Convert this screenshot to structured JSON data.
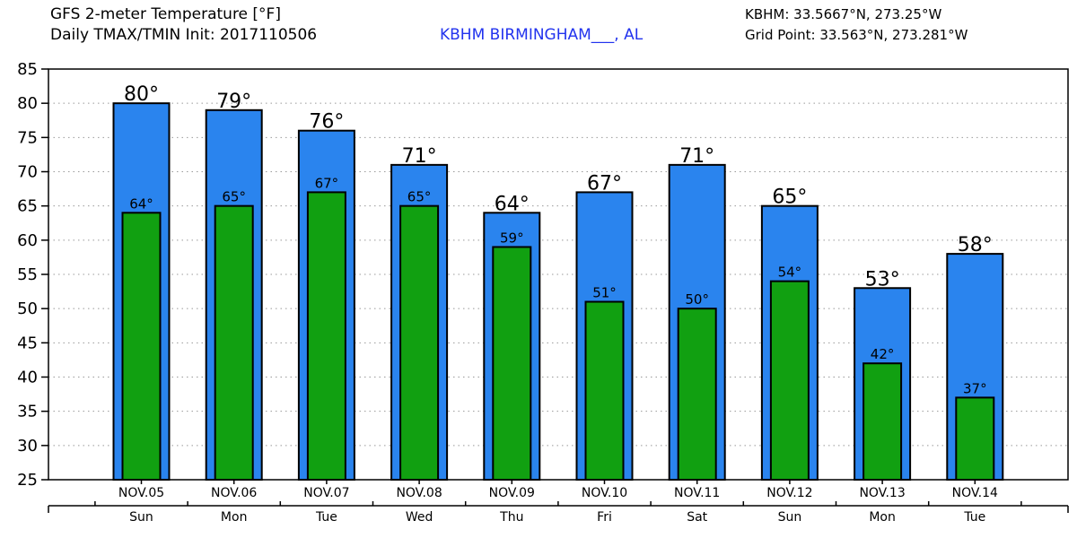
{
  "header": {
    "title_line1": "GFS 2-meter Temperature [°F]",
    "title_line2": "Daily TMAX/TMIN Init: 2017110506",
    "station": "KBHM BIRMINGHAM___, AL",
    "station_coords": "KBHM: 33.5667°N, 273.25°W",
    "grid_point": "Grid Point: 33.563°N, 273.281°W"
  },
  "colors": {
    "tmax": "#2a84ee",
    "tmin": "#11a011",
    "grid": "#999999",
    "station_text": "#2233ee"
  },
  "chart_data": {
    "type": "bar",
    "title": "GFS 2-meter Temperature [°F]",
    "ylabel": "",
    "xlabel": "",
    "ylim": [
      25,
      85
    ],
    "yticks": [
      25,
      30,
      35,
      40,
      45,
      50,
      55,
      60,
      65,
      70,
      75,
      80,
      85
    ],
    "categories": [
      "NOV.05",
      "NOV.06",
      "NOV.07",
      "NOV.08",
      "NOV.09",
      "NOV.10",
      "NOV.11",
      "NOV.12",
      "NOV.13",
      "NOV.14"
    ],
    "days": [
      "Sun",
      "Mon",
      "Tue",
      "Wed",
      "Thu",
      "Fri",
      "Sat",
      "Sun",
      "Mon",
      "Tue"
    ],
    "series": [
      {
        "name": "TMAX",
        "values": [
          80,
          79,
          76,
          71,
          64,
          67,
          71,
          65,
          53,
          58
        ],
        "labels": [
          "80°",
          "79°",
          "76°",
          "71°",
          "64°",
          "67°",
          "71°",
          "65°",
          "53°",
          "58°"
        ]
      },
      {
        "name": "TMIN",
        "values": [
          64,
          65,
          67,
          65,
          59,
          51,
          50,
          54,
          42,
          37
        ],
        "labels": [
          "64°",
          "65°",
          "67°",
          "65°",
          "59°",
          "51°",
          "50°",
          "54°",
          "42°",
          "37°"
        ]
      }
    ]
  }
}
